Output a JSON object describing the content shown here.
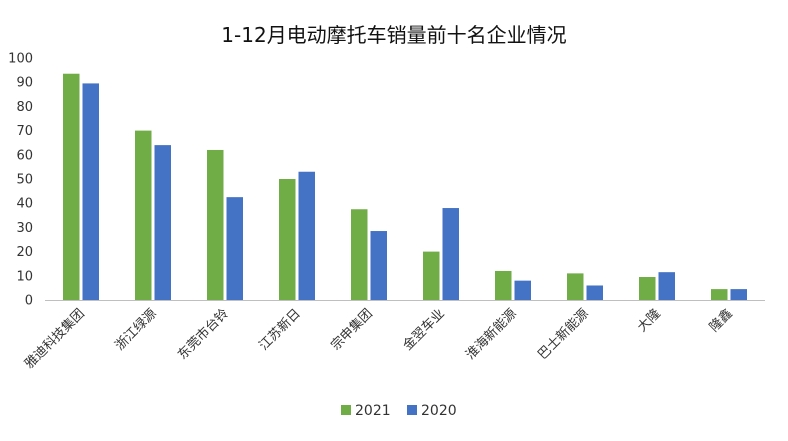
{
  "chart_data": {
    "type": "bar",
    "title": "1-12月电动摩托车销量前十名企业情况",
    "xlabel": "",
    "ylabel": "",
    "ylim": [
      0,
      100
    ],
    "yticks": [
      0,
      10,
      20,
      30,
      40,
      50,
      60,
      70,
      80,
      90,
      100
    ],
    "grid": false,
    "legend_position": "bottom",
    "categories": [
      "雅迪科技集团",
      "浙江绿源",
      "东莞市台铃",
      "江苏新日",
      "宗申集团",
      "金翌车业",
      "淮海新能源",
      "巴士新能源",
      "大隆",
      "隆鑫"
    ],
    "series": [
      {
        "name": "2021",
        "color": "#70ad47",
        "values": [
          93.5,
          70,
          62,
          50,
          37.5,
          20,
          12,
          11,
          9.5,
          4.5
        ]
      },
      {
        "name": "2020",
        "color": "#4472c4",
        "values": [
          89.5,
          64,
          42.5,
          53,
          28.5,
          38,
          8,
          6,
          11.5,
          4.5
        ]
      }
    ]
  }
}
